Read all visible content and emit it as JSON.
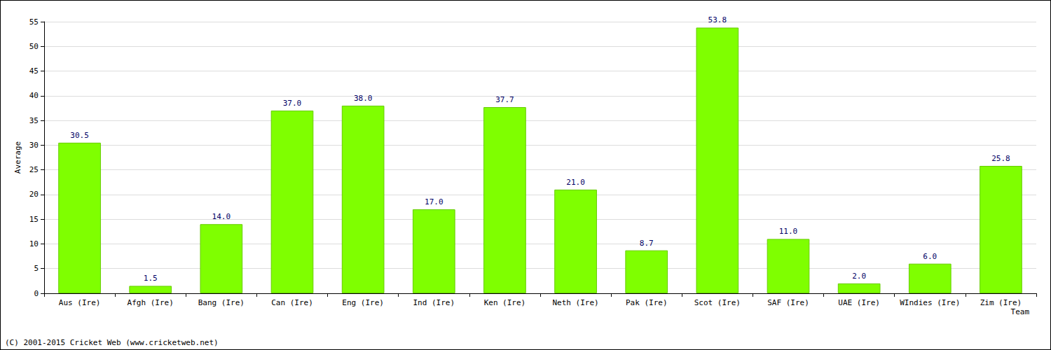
{
  "chart_data": {
    "type": "bar",
    "x_label": "Team",
    "y_label": "Average",
    "annotations": [
      "(C) 2001-2015 Cricket Web (www.cricketweb.net)"
    ],
    "categories": [
      "Aus (Ire)",
      "Afgh (Ire)",
      "Bang (Ire)",
      "Can (Ire)",
      "Eng (Ire)",
      "Ind (Ire)",
      "Ken (Ire)",
      "Neth (Ire)",
      "Pak (Ire)",
      "Scot (Ire)",
      "SAF (Ire)",
      "UAE (Ire)",
      "WIndies (Ire)",
      "Zim (Ire)"
    ],
    "values": [
      30.5,
      1.5,
      14.0,
      37.0,
      38.0,
      17.0,
      37.7,
      21.0,
      8.7,
      53.8,
      11.0,
      2.0,
      6.0,
      25.8
    ],
    "value_labels": [
      "30.5",
      "1.5",
      "14.0",
      "37.0",
      "38.0",
      "17.0",
      "37.7",
      "21.0",
      "8.7",
      "53.8",
      "11.0",
      "2.0",
      "6.0",
      "25.8"
    ],
    "color": "#7fff00",
    "ylim": [
      0,
      55
    ],
    "yticks": [
      0,
      5,
      10,
      15,
      20,
      25,
      30,
      35,
      40,
      45,
      50,
      55
    ],
    "grid": true,
    "data_labels": true
  }
}
